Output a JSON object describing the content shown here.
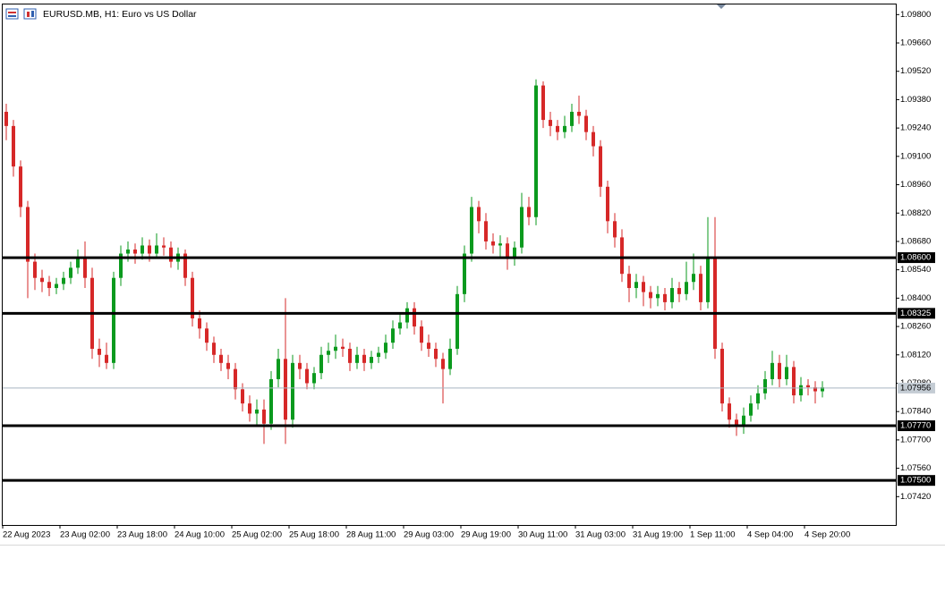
{
  "chart_data": {
    "type": "candlestick",
    "title": "EURUSD.MB, H1:  Euro vs US Dollar",
    "categories": [
      "22 Aug 2023",
      null,
      null,
      null,
      null,
      null,
      null,
      null,
      "23 Aug 02:00",
      null,
      null,
      null,
      null,
      null,
      null,
      null,
      "23 Aug 18:00",
      null,
      null,
      null,
      null,
      null,
      null,
      null,
      "24 Aug 10:00",
      null,
      null,
      null,
      null,
      null,
      null,
      null,
      "25 Aug 02:00",
      null,
      null,
      null,
      null,
      null,
      null,
      null,
      "25 Aug 18:00",
      null,
      null,
      null,
      null,
      null,
      null,
      null,
      "28 Aug 11:00",
      null,
      null,
      null,
      null,
      null,
      null,
      null,
      "29 Aug 03:00",
      null,
      null,
      null,
      null,
      null,
      null,
      null,
      "29 Aug 19:00",
      null,
      null,
      null,
      null,
      null,
      null,
      null,
      "30 Aug 11:00",
      null,
      null,
      null,
      null,
      null,
      null,
      null,
      "31 Aug 03:00",
      null,
      null,
      null,
      null,
      null,
      null,
      null,
      "31 Aug 19:00",
      null,
      null,
      null,
      null,
      null,
      null,
      null,
      "1 Sep 11:00",
      null,
      null,
      null,
      null,
      null,
      null,
      null,
      "4 Sep 04:00",
      null,
      null,
      null,
      null,
      null,
      null,
      null,
      "4 Sep 20:00",
      null,
      null
    ],
    "open": [
      1.0932,
      1.0925,
      1.0905,
      1.0885,
      1.0858,
      1.085,
      1.0848,
      1.0845,
      1.0847,
      1.085,
      1.0855,
      1.086,
      1.085,
      1.0815,
      1.0812,
      1.0808,
      1.085,
      1.0862,
      1.0864,
      1.0862,
      1.0866,
      1.0862,
      1.0866,
      1.0865,
      1.0858,
      1.0862,
      1.085,
      1.083,
      1.0825,
      1.0818,
      1.0812,
      1.0808,
      1.0805,
      1.0795,
      1.0788,
      1.0783,
      1.0785,
      1.0778,
      1.08,
      1.081,
      1.078,
      1.0808,
      1.0805,
      1.0798,
      1.0803,
      1.0812,
      1.0814,
      1.0816,
      1.0815,
      1.0808,
      1.0812,
      1.0808,
      1.0811,
      1.0813,
      1.0818,
      1.0825,
      1.0828,
      1.0835,
      1.0826,
      1.0818,
      1.0815,
      1.081,
      1.0805,
      1.0815,
      1.0842,
      1.0862,
      1.0885,
      1.0878,
      1.0868,
      1.0866,
      1.0867,
      1.086,
      1.0865,
      1.0885,
      1.088,
      1.0945,
      1.0928,
      1.0925,
      1.0922,
      1.0925,
      1.0932,
      1.093,
      1.0922,
      1.0915,
      1.0895,
      1.0878,
      1.087,
      1.0852,
      1.0845,
      1.0848,
      1.0843,
      1.084,
      1.0842,
      1.0838,
      1.0845,
      1.0842,
      1.0848,
      1.0852,
      1.0838,
      1.086,
      1.0815,
      1.0788,
      1.078,
      1.0777,
      1.0782,
      1.0788,
      1.0793,
      1.08,
      1.0808,
      1.08,
      1.0806,
      1.0792,
      1.0797,
      1.0796,
      1.0794
    ],
    "high": [
      1.0936,
      1.0928,
      1.0908,
      1.0888,
      1.0862,
      1.0854,
      1.0851,
      1.085,
      1.0853,
      1.0858,
      1.0864,
      1.0868,
      1.0855,
      1.082,
      1.0818,
      1.0853,
      1.0866,
      1.0868,
      1.0867,
      1.087,
      1.0869,
      1.0872,
      1.087,
      1.0868,
      1.0865,
      1.0864,
      1.0853,
      1.0834,
      1.0828,
      1.0821,
      1.0815,
      1.0812,
      1.0808,
      1.0798,
      1.0792,
      1.079,
      1.079,
      1.0804,
      1.0815,
      1.084,
      1.0812,
      1.0812,
      1.0808,
      1.0806,
      1.0816,
      1.0818,
      1.0822,
      1.082,
      1.0818,
      1.0816,
      1.0815,
      1.0814,
      1.0816,
      1.0822,
      1.0829,
      1.0832,
      1.0838,
      1.0838,
      1.0829,
      1.0822,
      1.0818,
      1.0813,
      1.082,
      1.0846,
      1.0866,
      1.089,
      1.0888,
      1.0882,
      1.0872,
      1.0871,
      1.087,
      1.0868,
      1.0892,
      1.089,
      1.0948,
      1.0947,
      1.0932,
      1.0928,
      1.093,
      1.0936,
      1.094,
      1.0933,
      1.0925,
      1.0918,
      1.0898,
      1.0882,
      1.0874,
      1.0856,
      1.0852,
      1.0851,
      1.0846,
      1.0846,
      1.0845,
      1.085,
      1.0848,
      1.0858,
      1.0862,
      1.0856,
      1.088,
      1.088,
      1.0818,
      1.0791,
      1.0783,
      1.0786,
      1.0792,
      1.0797,
      1.0804,
      1.0814,
      1.0812,
      1.0812,
      1.0809,
      1.0801,
      1.08,
      1.0799,
      1.0799
    ],
    "low": [
      1.0918,
      1.09,
      1.088,
      1.084,
      1.0844,
      1.0843,
      1.0841,
      1.0842,
      1.0844,
      1.0847,
      1.0852,
      1.0845,
      1.081,
      1.0806,
      1.0805,
      1.0805,
      1.0846,
      1.0858,
      1.0857,
      1.0859,
      1.0858,
      1.086,
      1.0861,
      1.0855,
      1.0854,
      1.0846,
      1.0826,
      1.082,
      1.0814,
      1.0808,
      1.0804,
      1.08,
      1.079,
      1.0784,
      1.0779,
      1.0777,
      1.0768,
      1.0775,
      1.0796,
      1.0768,
      1.0776,
      1.08,
      1.0795,
      1.0795,
      1.08,
      1.0808,
      1.081,
      1.0811,
      1.0804,
      1.0805,
      1.0804,
      1.0805,
      1.0808,
      1.081,
      1.0815,
      1.0822,
      1.0825,
      1.0822,
      1.0814,
      1.0811,
      1.0806,
      1.0788,
      1.0802,
      1.0812,
      1.0838,
      1.0858,
      1.0872,
      1.0864,
      1.0862,
      1.086,
      1.0854,
      1.0856,
      1.0862,
      1.0876,
      1.0876,
      1.0924,
      1.092,
      1.0918,
      1.0919,
      1.0922,
      1.0926,
      1.0918,
      1.091,
      1.089,
      1.0872,
      1.0865,
      1.0848,
      1.0838,
      1.084,
      1.0836,
      1.0835,
      1.0836,
      1.0834,
      1.0835,
      1.0838,
      1.0839,
      1.0844,
      1.0834,
      1.0835,
      1.081,
      1.0784,
      1.0776,
      1.0772,
      1.0773,
      1.0779,
      1.0785,
      1.079,
      1.0797,
      1.0796,
      1.0797,
      1.0788,
      1.0789,
      1.0792,
      1.0788,
      1.0791
    ],
    "close": [
      1.0925,
      1.0905,
      1.0885,
      1.0858,
      1.085,
      1.0848,
      1.0845,
      1.0847,
      1.085,
      1.0855,
      1.086,
      1.085,
      1.0815,
      1.0812,
      1.0808,
      1.085,
      1.0862,
      1.0864,
      1.0862,
      1.0866,
      1.0862,
      1.0866,
      1.0865,
      1.0858,
      1.0862,
      1.085,
      1.083,
      1.0825,
      1.0818,
      1.0812,
      1.0808,
      1.0805,
      1.0795,
      1.0788,
      1.0783,
      1.0785,
      1.0778,
      1.08,
      1.081,
      1.078,
      1.0808,
      1.0805,
      1.0798,
      1.0803,
      1.0812,
      1.0814,
      1.0816,
      1.0815,
      1.0808,
      1.0812,
      1.0808,
      1.0811,
      1.0813,
      1.0818,
      1.0825,
      1.0828,
      1.0835,
      1.0826,
      1.0818,
      1.0815,
      1.081,
      1.0805,
      1.0815,
      1.0842,
      1.0862,
      1.0885,
      1.0878,
      1.0868,
      1.0866,
      1.0867,
      1.086,
      1.0865,
      1.0885,
      1.088,
      1.0945,
      1.0928,
      1.0925,
      1.0922,
      1.0925,
      1.0932,
      1.093,
      1.0922,
      1.0915,
      1.0895,
      1.0878,
      1.087,
      1.0852,
      1.0845,
      1.0848,
      1.0843,
      1.084,
      1.0842,
      1.0838,
      1.0845,
      1.0842,
      1.0848,
      1.0852,
      1.0838,
      1.086,
      1.0815,
      1.0788,
      1.078,
      1.0777,
      1.0782,
      1.0788,
      1.0793,
      1.08,
      1.0808,
      1.08,
      1.0806,
      1.0792,
      1.0797,
      1.0796,
      1.0794,
      1.0796
    ],
    "up_color": "#0b9a1e",
    "down_color": "#d62828",
    "ylim": [
      1.0728,
      1.0985
    ],
    "yticks": [
      {
        "value": 1.098,
        "label": "1.09800"
      },
      {
        "value": 1.0966,
        "label": "1.09660"
      },
      {
        "value": 1.0952,
        "label": "1.09520"
      },
      {
        "value": 1.0938,
        "label": "1.09380"
      },
      {
        "value": 1.0924,
        "label": "1.09240"
      },
      {
        "value": 1.091,
        "label": "1.09100"
      },
      {
        "value": 1.0896,
        "label": "1.08960"
      },
      {
        "value": 1.0882,
        "label": "1.08820"
      },
      {
        "value": 1.0868,
        "label": "1.08680"
      },
      {
        "value": 1.0854,
        "label": "1.08540"
      },
      {
        "value": 1.084,
        "label": "1.08400"
      },
      {
        "value": 1.0826,
        "label": "1.08260"
      },
      {
        "value": 1.0812,
        "label": "1.08120"
      },
      {
        "value": 1.0798,
        "label": "1.07980"
      },
      {
        "value": 1.0784,
        "label": "1.07840"
      },
      {
        "value": 1.077,
        "label": "1.07700"
      },
      {
        "value": 1.0756,
        "label": "1.07560"
      },
      {
        "value": 1.0742,
        "label": "1.07420"
      }
    ],
    "levels": [
      {
        "value": 1.086,
        "label": "1.08600"
      },
      {
        "value": 1.08325,
        "label": "1.08325"
      },
      {
        "value": 1.0777,
        "label": "1.07770"
      },
      {
        "value": 1.075,
        "label": "1.07500"
      }
    ],
    "current_price": {
      "value": 1.07956,
      "label": "1.07956"
    },
    "grid": false
  }
}
